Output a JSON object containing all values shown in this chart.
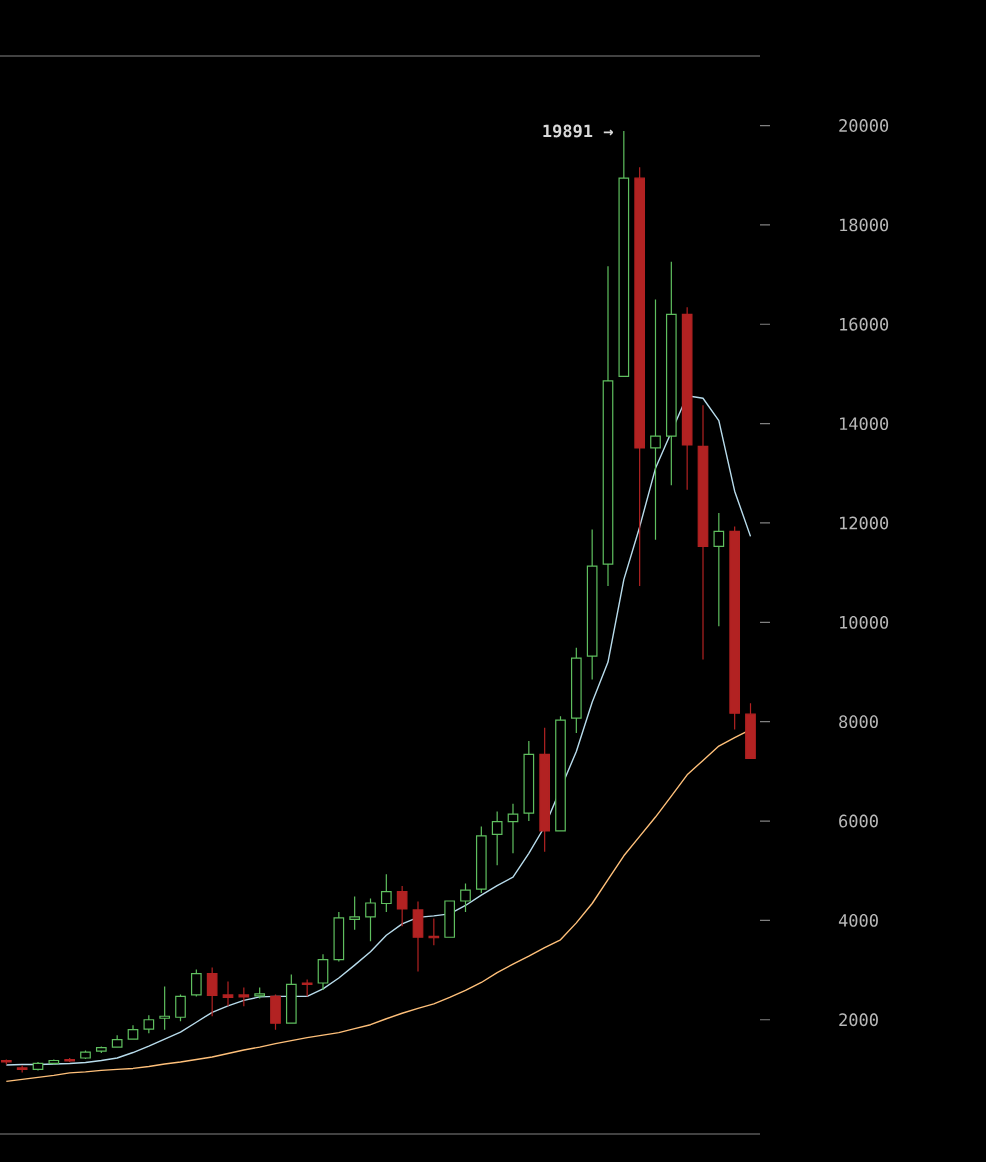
{
  "chart_data": {
    "type": "candlestick",
    "categories": [
      null,
      null,
      null,
      null,
      null,
      null,
      null,
      null,
      null,
      null,
      null,
      null,
      null,
      null,
      null,
      null,
      null,
      null,
      null,
      null,
      null,
      null,
      null,
      null,
      null,
      null,
      null,
      null,
      null,
      null,
      null,
      null,
      null,
      null,
      null,
      null,
      null,
      null,
      null,
      null,
      null,
      null,
      null,
      null,
      null,
      null,
      null,
      null
    ],
    "ohlc": [
      [
        1180,
        1200,
        1100,
        1150
      ],
      [
        1030,
        1080,
        940,
        1000
      ],
      [
        1000,
        1150,
        980,
        1120
      ],
      [
        1120,
        1200,
        1100,
        1180
      ],
      [
        1200,
        1230,
        1150,
        1170
      ],
      [
        1230,
        1380,
        1210,
        1350
      ],
      [
        1370,
        1460,
        1330,
        1440
      ],
      [
        1450,
        1690,
        1440,
        1600
      ],
      [
        1610,
        1890,
        1600,
        1800
      ],
      [
        1810,
        2090,
        1730,
        2000
      ],
      [
        2030,
        2670,
        1800,
        2070
      ],
      [
        2050,
        2510,
        1970,
        2470
      ],
      [
        2500,
        3010,
        2470,
        2930
      ],
      [
        2930,
        3050,
        2070,
        2490
      ],
      [
        2500,
        2770,
        2270,
        2450
      ],
      [
        2500,
        2650,
        2270,
        2460
      ],
      [
        2480,
        2650,
        2430,
        2520
      ],
      [
        2470,
        2510,
        1800,
        1930
      ],
      [
        1930,
        2910,
        1930,
        2710
      ],
      [
        2740,
        2810,
        2470,
        2710
      ],
      [
        2740,
        3320,
        2600,
        3210
      ],
      [
        3210,
        4170,
        3170,
        4050
      ],
      [
        4020,
        4480,
        3810,
        4070
      ],
      [
        4070,
        4440,
        3580,
        4350
      ],
      [
        4340,
        4930,
        4170,
        4580
      ],
      [
        4580,
        4690,
        3880,
        4230
      ],
      [
        4210,
        4380,
        2970,
        3660
      ],
      [
        3680,
        4040,
        3500,
        3650
      ],
      [
        3660,
        4390,
        3660,
        4390
      ],
      [
        4390,
        4740,
        4170,
        4610
      ],
      [
        4630,
        5890,
        4550,
        5700
      ],
      [
        5730,
        6190,
        5110,
        5990
      ],
      [
        5990,
        6350,
        5350,
        6140
      ],
      [
        6160,
        7610,
        6000,
        7340
      ],
      [
        7340,
        7880,
        5380,
        5800
      ],
      [
        5800,
        8110,
        5800,
        8030
      ],
      [
        8070,
        9490,
        7770,
        9280
      ],
      [
        9320,
        11870,
        8850,
        11130
      ],
      [
        11170,
        17170,
        10730,
        14860
      ],
      [
        14950,
        19891,
        14950,
        18940
      ],
      [
        18940,
        19160,
        10730,
        13510
      ],
      [
        13510,
        16500,
        11660,
        13750
      ],
      [
        13750,
        17260,
        12760,
        16200
      ],
      [
        16200,
        16340,
        12670,
        13570
      ],
      [
        13540,
        14370,
        9250,
        11530
      ],
      [
        11530,
        12200,
        9920,
        11830
      ],
      [
        11830,
        11930,
        7840,
        8170
      ],
      [
        8150,
        8370,
        7260,
        7260
      ]
    ],
    "colors": [
      "#b22222",
      "#b22222",
      "#5fbf5f",
      "#5fbf5f",
      "#b22222",
      "#5fbf5f",
      "#5fbf5f",
      "#5fbf5f",
      "#5fbf5f",
      "#5fbf5f",
      "#5fbf5f",
      "#5fbf5f",
      "#5fbf5f",
      "#b22222",
      "#b22222",
      "#b22222",
      "#5fbf5f",
      "#b22222",
      "#5fbf5f",
      "#b22222",
      "#5fbf5f",
      "#5fbf5f",
      "#5fbf5f",
      "#5fbf5f",
      "#5fbf5f",
      "#b22222",
      "#b22222",
      "#b22222",
      "#5fbf5f",
      "#5fbf5f",
      "#5fbf5f",
      "#5fbf5f",
      "#5fbf5f",
      "#5fbf5f",
      "#b22222",
      "#5fbf5f",
      "#5fbf5f",
      "#5fbf5f",
      "#5fbf5f",
      "#5fbf5f",
      "#b22222",
      "#5fbf5f",
      "#5fbf5f",
      "#b22222",
      "#b22222",
      "#5fbf5f",
      "#b22222",
      "#b22222"
    ],
    "ylim": [
      -300,
      21400
    ],
    "yticks": [
      2000,
      4000,
      6000,
      8000,
      10000,
      12000,
      14000,
      16000,
      18000,
      20000
    ],
    "annotations": [
      "19891 →"
    ],
    "series": [
      {
        "type": "line",
        "color": "#b8dcec",
        "values": [
          1090,
          1100,
          1100,
          1110,
          1120,
          1140,
          1180,
          1230,
          1340,
          1470,
          1610,
          1750,
          1950,
          2150,
          2280,
          2390,
          2460,
          2470,
          2470,
          2470,
          2620,
          2840,
          3100,
          3370,
          3700,
          3930,
          4060,
          4090,
          4130,
          4300,
          4510,
          4700,
          4870,
          5350,
          5890,
          null,
          7400,
          8390,
          9200,
          10860,
          11920,
          13100,
          null,
          14560,
          14510,
          14060,
          12640,
          11730
        ]
      },
      {
        "type": "line",
        "color": "#ffc07a",
        "values": [
          760,
          800,
          840,
          880,
          930,
          950,
          980,
          1000,
          1020,
          1060,
          1110,
          1150,
          1200,
          1250,
          1320,
          1390,
          1450,
          1520,
          1580,
          1640,
          1690,
          1740,
          1820,
          1900,
          2020,
          2130,
          2230,
          2320,
          2450,
          2590,
          2750,
          2950,
          3120,
          3280,
          3450,
          3610,
          3950,
          4340,
          4820,
          5300,
          5690,
          6080,
          6500,
          6930,
          7220,
          7510,
          7680,
          7840
        ]
      }
    ]
  }
}
